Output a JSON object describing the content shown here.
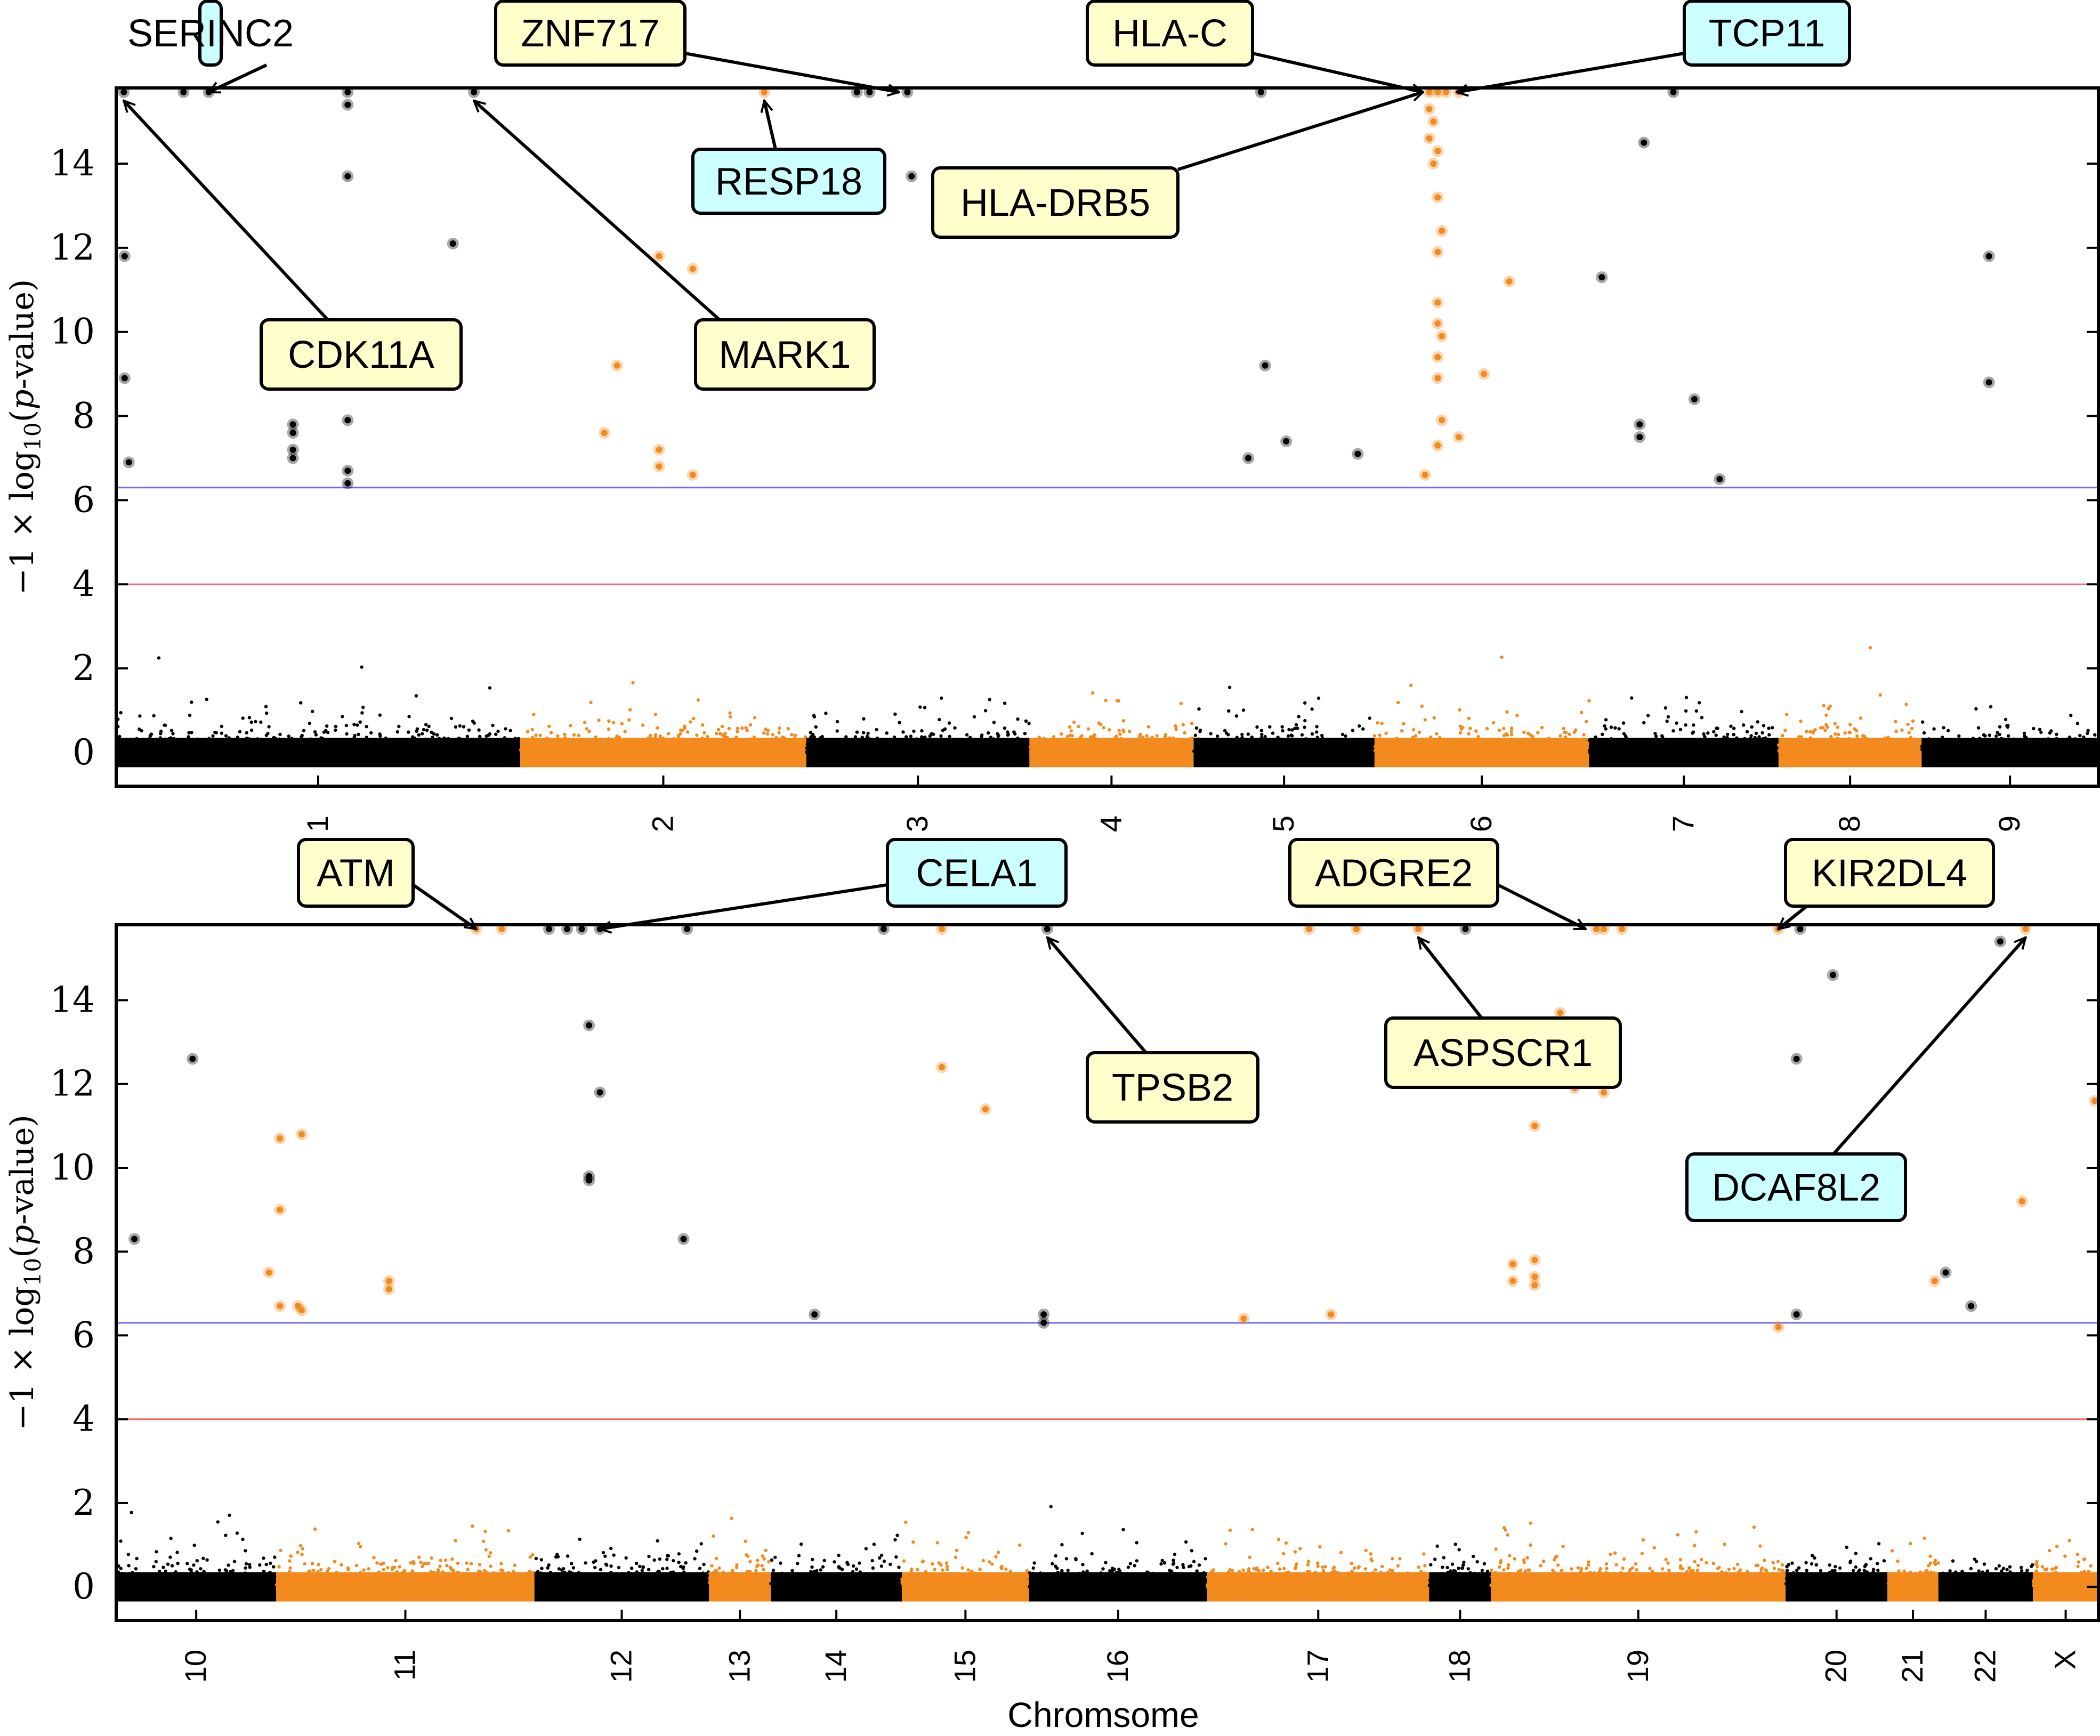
{
  "figure": {
    "xlabel": "Chromsome",
    "ylabel_parts": {
      "prefix": "−1 × log",
      "sub": "10",
      "open": "(",
      "italic": "p",
      "suffix": "-value)"
    },
    "colors": {
      "odd": "#000000",
      "even": "#f28a1e",
      "blue_line": "#6b6bff",
      "red_line": "#ff6666",
      "label_yellow": "#ffffcc",
      "label_cyan": "#ccffff",
      "frame": "#000000"
    }
  },
  "chart_data": [
    {
      "type": "scatter",
      "title": "",
      "xlabel": "",
      "ylabel": "−1 × log10(p-value)",
      "ylim": [
        -0.8,
        15.8
      ],
      "yticks": [
        0,
        2,
        4,
        6,
        8,
        10,
        12,
        14
      ],
      "thresholds": [
        {
          "y": 6.3,
          "color": "blue"
        },
        {
          "y": 4.0,
          "color": "red"
        }
      ],
      "chromosomes": [
        {
          "label": "1",
          "start": 0,
          "end": 9.6
        },
        {
          "label": "2",
          "start": 9.6,
          "end": 16.4
        },
        {
          "label": "3",
          "start": 16.4,
          "end": 21.7
        },
        {
          "label": "4",
          "start": 21.7,
          "end": 25.6
        },
        {
          "label": "5",
          "start": 25.6,
          "end": 29.9
        },
        {
          "label": "6",
          "start": 29.9,
          "end": 35.0
        },
        {
          "label": "7",
          "start": 35.0,
          "end": 39.5
        },
        {
          "label": "8",
          "start": 39.5,
          "end": 42.9
        },
        {
          "label": "9",
          "start": 42.9,
          "end": 47.1
        }
      ],
      "xlim": [
        0,
        47.1
      ],
      "highlighted_points": [
        {
          "x": 0.18,
          "y": 15.7,
          "chr_parity": "odd"
        },
        {
          "x": 1.6,
          "y": 15.7,
          "chr_parity": "odd"
        },
        {
          "x": 2.2,
          "y": 15.7,
          "chr_parity": "odd"
        },
        {
          "x": 5.5,
          "y": 15.7,
          "chr_parity": "odd"
        },
        {
          "x": 5.5,
          "y": 15.4,
          "chr_parity": "odd"
        },
        {
          "x": 5.5,
          "y": 13.7,
          "chr_parity": "odd"
        },
        {
          "x": 5.5,
          "y": 7.9,
          "chr_parity": "odd"
        },
        {
          "x": 5.5,
          "y": 6.7,
          "chr_parity": "odd"
        },
        {
          "x": 5.5,
          "y": 6.4,
          "chr_parity": "odd"
        },
        {
          "x": 8.5,
          "y": 15.7,
          "chr_parity": "odd"
        },
        {
          "x": 8.0,
          "y": 12.1,
          "chr_parity": "odd"
        },
        {
          "x": 0.2,
          "y": 11.8,
          "chr_parity": "odd"
        },
        {
          "x": 0.2,
          "y": 8.9,
          "chr_parity": "odd"
        },
        {
          "x": 0.3,
          "y": 6.9,
          "chr_parity": "odd"
        },
        {
          "x": 4.2,
          "y": 7.8,
          "chr_parity": "odd"
        },
        {
          "x": 4.2,
          "y": 7.6,
          "chr_parity": "odd"
        },
        {
          "x": 4.2,
          "y": 7.2,
          "chr_parity": "odd"
        },
        {
          "x": 4.2,
          "y": 7.0,
          "chr_parity": "odd"
        },
        {
          "x": 15.4,
          "y": 15.7,
          "chr_parity": "even"
        },
        {
          "x": 12.9,
          "y": 11.8,
          "chr_parity": "even"
        },
        {
          "x": 13.7,
          "y": 11.5,
          "chr_parity": "even"
        },
        {
          "x": 11.9,
          "y": 9.2,
          "chr_parity": "even"
        },
        {
          "x": 11.6,
          "y": 7.6,
          "chr_parity": "even"
        },
        {
          "x": 12.9,
          "y": 7.2,
          "chr_parity": "even"
        },
        {
          "x": 12.9,
          "y": 6.8,
          "chr_parity": "even"
        },
        {
          "x": 13.7,
          "y": 6.6,
          "chr_parity": "even"
        },
        {
          "x": 17.6,
          "y": 15.7,
          "chr_parity": "odd"
        },
        {
          "x": 17.9,
          "y": 15.7,
          "chr_parity": "odd"
        },
        {
          "x": 18.8,
          "y": 15.7,
          "chr_parity": "odd"
        },
        {
          "x": 18.9,
          "y": 13.7,
          "chr_parity": "odd"
        },
        {
          "x": 27.2,
          "y": 15.7,
          "chr_parity": "odd"
        },
        {
          "x": 27.3,
          "y": 9.2,
          "chr_parity": "odd"
        },
        {
          "x": 27.8,
          "y": 7.4,
          "chr_parity": "odd"
        },
        {
          "x": 26.9,
          "y": 7.0,
          "chr_parity": "odd"
        },
        {
          "x": 29.5,
          "y": 7.1,
          "chr_parity": "odd"
        },
        {
          "x": 31.2,
          "y": 15.7,
          "chr_parity": "even"
        },
        {
          "x": 31.4,
          "y": 15.7,
          "chr_parity": "even"
        },
        {
          "x": 31.6,
          "y": 15.7,
          "chr_parity": "even"
        },
        {
          "x": 31.2,
          "y": 15.3,
          "chr_parity": "even"
        },
        {
          "x": 31.3,
          "y": 15.0,
          "chr_parity": "even"
        },
        {
          "x": 31.2,
          "y": 14.6,
          "chr_parity": "even"
        },
        {
          "x": 31.4,
          "y": 14.3,
          "chr_parity": "even"
        },
        {
          "x": 31.3,
          "y": 14.0,
          "chr_parity": "even"
        },
        {
          "x": 31.4,
          "y": 13.2,
          "chr_parity": "even"
        },
        {
          "x": 31.5,
          "y": 12.4,
          "chr_parity": "even"
        },
        {
          "x": 31.4,
          "y": 11.9,
          "chr_parity": "even"
        },
        {
          "x": 31.4,
          "y": 10.7,
          "chr_parity": "even"
        },
        {
          "x": 31.4,
          "y": 10.2,
          "chr_parity": "even"
        },
        {
          "x": 31.5,
          "y": 9.9,
          "chr_parity": "even"
        },
        {
          "x": 31.4,
          "y": 9.4,
          "chr_parity": "even"
        },
        {
          "x": 31.4,
          "y": 8.9,
          "chr_parity": "even"
        },
        {
          "x": 31.5,
          "y": 7.9,
          "chr_parity": "even"
        },
        {
          "x": 31.4,
          "y": 7.3,
          "chr_parity": "even"
        },
        {
          "x": 31.1,
          "y": 6.6,
          "chr_parity": "even"
        },
        {
          "x": 31.9,
          "y": 15.7,
          "chr_parity": "even"
        },
        {
          "x": 31.9,
          "y": 7.5,
          "chr_parity": "even"
        },
        {
          "x": 33.1,
          "y": 11.2,
          "chr_parity": "even"
        },
        {
          "x": 32.5,
          "y": 9.0,
          "chr_parity": "even"
        },
        {
          "x": 35.3,
          "y": 11.3,
          "chr_parity": "odd"
        },
        {
          "x": 37.0,
          "y": 15.7,
          "chr_parity": "odd"
        },
        {
          "x": 36.3,
          "y": 14.5,
          "chr_parity": "odd"
        },
        {
          "x": 36.2,
          "y": 7.8,
          "chr_parity": "odd"
        },
        {
          "x": 36.2,
          "y": 7.5,
          "chr_parity": "odd"
        },
        {
          "x": 37.5,
          "y": 8.4,
          "chr_parity": "odd"
        },
        {
          "x": 38.1,
          "y": 6.5,
          "chr_parity": "odd"
        },
        {
          "x": 44.5,
          "y": 11.8,
          "chr_parity": "odd"
        },
        {
          "x": 44.5,
          "y": 8.8,
          "chr_parity": "odd"
        }
      ],
      "annotations": [
        {
          "gene": "SERINC2",
          "style": "cyan",
          "target": {
            "x": 2.2,
            "y": 15.7
          }
        },
        {
          "gene": "ZNF717",
          "style": "yellow",
          "target": {
            "x": 18.6,
            "y": 15.7
          }
        },
        {
          "gene": "HLA-C",
          "style": "yellow",
          "target": {
            "x": 31.2,
            "y": 15.7
          }
        },
        {
          "gene": "TCP11",
          "style": "cyan",
          "target": {
            "x": 31.7,
            "y": 15.7
          }
        },
        {
          "gene": "RESP18",
          "style": "cyan",
          "target": {
            "x": 15.4,
            "y": 15.7
          }
        },
        {
          "gene": "HLA-DRB5",
          "style": "yellow",
          "target": {
            "x": 31.2,
            "y": 15.7
          }
        },
        {
          "gene": "CDK11A",
          "style": "yellow",
          "target": {
            "x": 0.18,
            "y": 15.7
          }
        },
        {
          "gene": "MARK1",
          "style": "yellow",
          "target": {
            "x": 8.5,
            "y": 15.7
          }
        }
      ]
    },
    {
      "type": "scatter",
      "title": "",
      "xlabel": "Chromsome",
      "ylabel": "−1 × log10(p-value)",
      "ylim": [
        -0.8,
        15.8
      ],
      "yticks": [
        0,
        2,
        4,
        6,
        8,
        10,
        12,
        14
      ],
      "thresholds": [
        {
          "y": 6.3,
          "color": "blue"
        },
        {
          "y": 4.0,
          "color": "red"
        }
      ],
      "chromosomes": [
        {
          "label": "10",
          "start": 0,
          "end": 4.4
        },
        {
          "label": "11",
          "start": 4.4,
          "end": 11.5
        },
        {
          "label": "12",
          "start": 11.5,
          "end": 16.3
        },
        {
          "label": "13",
          "start": 16.3,
          "end": 18.0
        },
        {
          "label": "14",
          "start": 18.0,
          "end": 21.6
        },
        {
          "label": "15",
          "start": 21.6,
          "end": 25.1
        },
        {
          "label": "16",
          "start": 25.1,
          "end": 30.0
        },
        {
          "label": "17",
          "start": 30.0,
          "end": 36.1
        },
        {
          "label": "18",
          "start": 36.1,
          "end": 37.8
        },
        {
          "label": "19",
          "start": 37.8,
          "end": 45.9
        },
        {
          "label": "20",
          "start": 45.9,
          "end": 48.7
        },
        {
          "label": "21",
          "start": 48.7,
          "end": 50.1
        },
        {
          "label": "22",
          "start": 50.1,
          "end": 52.7
        },
        {
          "label": "X",
          "start": 52.7,
          "end": 54.5
        }
      ],
      "xlim": [
        0,
        54.5
      ],
      "highlighted_points": [
        {
          "x": 9.9,
          "y": 15.7,
          "chr_parity": "even"
        },
        {
          "x": 10.6,
          "y": 15.7,
          "chr_parity": "even"
        },
        {
          "x": 11.9,
          "y": 15.7,
          "chr_parity": "odd"
        },
        {
          "x": 12.4,
          "y": 15.7,
          "chr_parity": "odd"
        },
        {
          "x": 12.8,
          "y": 15.7,
          "chr_parity": "odd"
        },
        {
          "x": 13.3,
          "y": 15.7,
          "chr_parity": "odd"
        },
        {
          "x": 15.7,
          "y": 15.7,
          "chr_parity": "odd"
        },
        {
          "x": 13.0,
          "y": 13.4,
          "chr_parity": "odd"
        },
        {
          "x": 13.3,
          "y": 11.8,
          "chr_parity": "odd"
        },
        {
          "x": 13.0,
          "y": 9.7,
          "chr_parity": "odd"
        },
        {
          "x": 13.0,
          "y": 9.8,
          "chr_parity": "odd"
        },
        {
          "x": 15.6,
          "y": 8.3,
          "chr_parity": "odd"
        },
        {
          "x": 2.1,
          "y": 12.6,
          "chr_parity": "odd"
        },
        {
          "x": 0.5,
          "y": 8.3,
          "chr_parity": "odd"
        },
        {
          "x": 4.5,
          "y": 10.7,
          "chr_parity": "even"
        },
        {
          "x": 5.1,
          "y": 10.8,
          "chr_parity": "even"
        },
        {
          "x": 4.5,
          "y": 9.0,
          "chr_parity": "even"
        },
        {
          "x": 4.2,
          "y": 7.5,
          "chr_parity": "even"
        },
        {
          "x": 4.5,
          "y": 6.7,
          "chr_parity": "even"
        },
        {
          "x": 5.0,
          "y": 6.7,
          "chr_parity": "even"
        },
        {
          "x": 5.1,
          "y": 6.6,
          "chr_parity": "even"
        },
        {
          "x": 7.5,
          "y": 7.3,
          "chr_parity": "even"
        },
        {
          "x": 7.5,
          "y": 7.1,
          "chr_parity": "even"
        },
        {
          "x": 19.2,
          "y": 6.5,
          "chr_parity": "odd"
        },
        {
          "x": 21.1,
          "y": 15.7,
          "chr_parity": "odd"
        },
        {
          "x": 22.7,
          "y": 15.7,
          "chr_parity": "even"
        },
        {
          "x": 22.7,
          "y": 12.4,
          "chr_parity": "even"
        },
        {
          "x": 23.9,
          "y": 11.4,
          "chr_parity": "even"
        },
        {
          "x": 25.6,
          "y": 15.7,
          "chr_parity": "odd"
        },
        {
          "x": 25.5,
          "y": 6.5,
          "chr_parity": "odd"
        },
        {
          "x": 25.5,
          "y": 6.3,
          "chr_parity": "odd"
        },
        {
          "x": 31.0,
          "y": 6.4,
          "chr_parity": "even"
        },
        {
          "x": 33.4,
          "y": 6.5,
          "chr_parity": "even"
        },
        {
          "x": 32.8,
          "y": 15.7,
          "chr_parity": "even"
        },
        {
          "x": 34.1,
          "y": 15.7,
          "chr_parity": "even"
        },
        {
          "x": 35.8,
          "y": 15.7,
          "chr_parity": "even"
        },
        {
          "x": 37.1,
          "y": 15.7,
          "chr_parity": "odd"
        },
        {
          "x": 38.4,
          "y": 7.7,
          "chr_parity": "even"
        },
        {
          "x": 38.4,
          "y": 7.3,
          "chr_parity": "even"
        },
        {
          "x": 39.0,
          "y": 11.0,
          "chr_parity": "even"
        },
        {
          "x": 39.0,
          "y": 7.8,
          "chr_parity": "even"
        },
        {
          "x": 39.0,
          "y": 7.4,
          "chr_parity": "even"
        },
        {
          "x": 39.0,
          "y": 7.2,
          "chr_parity": "even"
        },
        {
          "x": 39.7,
          "y": 13.7,
          "chr_parity": "even"
        },
        {
          "x": 40.1,
          "y": 11.9,
          "chr_parity": "even"
        },
        {
          "x": 40.9,
          "y": 11.8,
          "chr_parity": "even"
        },
        {
          "x": 40.7,
          "y": 15.7,
          "chr_parity": "even"
        },
        {
          "x": 40.9,
          "y": 15.7,
          "chr_parity": "even"
        },
        {
          "x": 41.4,
          "y": 15.7,
          "chr_parity": "even"
        },
        {
          "x": 45.7,
          "y": 15.7,
          "chr_parity": "even"
        },
        {
          "x": 45.7,
          "y": 6.2,
          "chr_parity": "even"
        },
        {
          "x": 46.3,
          "y": 15.7,
          "chr_parity": "odd"
        },
        {
          "x": 46.2,
          "y": 12.6,
          "chr_parity": "odd"
        },
        {
          "x": 46.2,
          "y": 6.5,
          "chr_parity": "odd"
        },
        {
          "x": 47.2,
          "y": 14.6,
          "chr_parity": "odd"
        },
        {
          "x": 50.0,
          "y": 7.3,
          "chr_parity": "even"
        },
        {
          "x": 50.3,
          "y": 7.5,
          "chr_parity": "odd"
        },
        {
          "x": 51.0,
          "y": 6.7,
          "chr_parity": "odd"
        },
        {
          "x": 51.8,
          "y": 15.4,
          "chr_parity": "odd"
        },
        {
          "x": 52.5,
          "y": 15.7,
          "chr_parity": "even"
        },
        {
          "x": 52.4,
          "y": 9.2,
          "chr_parity": "even"
        },
        {
          "x": 54.4,
          "y": 11.6,
          "chr_parity": "even"
        }
      ],
      "annotations": [
        {
          "gene": "ATM",
          "style": "yellow",
          "target": {
            "x": 9.9,
            "y": 15.7
          }
        },
        {
          "gene": "CELA1",
          "style": "cyan",
          "target": {
            "x": 13.3,
            "y": 15.7
          }
        },
        {
          "gene": "ADGRE2",
          "style": "yellow",
          "target": {
            "x": 40.4,
            "y": 15.7
          }
        },
        {
          "gene": "KIR2DL4",
          "style": "yellow",
          "target": {
            "x": 45.7,
            "y": 15.7
          }
        },
        {
          "gene": "TPSB2",
          "style": "yellow",
          "target": {
            "x": 25.6,
            "y": 15.7
          }
        },
        {
          "gene": "ASPSCR1",
          "style": "yellow",
          "target": {
            "x": 35.8,
            "y": 15.7
          }
        },
        {
          "gene": "DCAF8L2",
          "style": "cyan",
          "target": {
            "x": 52.5,
            "y": 15.7
          }
        }
      ]
    }
  ]
}
